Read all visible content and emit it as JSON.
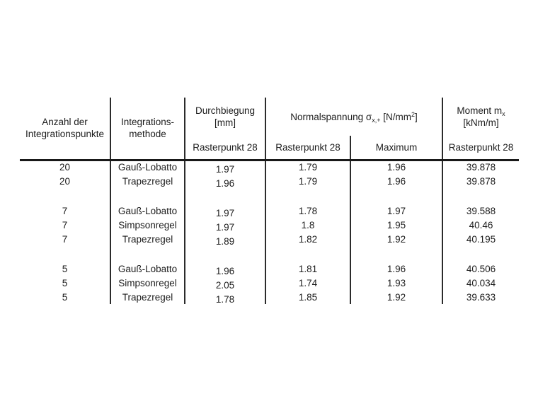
{
  "table": {
    "headers": {
      "anzahl_line1": "Anzahl der",
      "anzahl_line2": "Integrationspunkte",
      "methode_line1": "Integrations-",
      "methode_line2": "methode",
      "durchbiegung_line1": "Durchbiegung",
      "durchbiegung_line2": "[mm]",
      "normalspannung_text": "Normalspannung σ",
      "normalspannung_subscript": "x,+",
      "normalspannung_unit_open": " [N/mm",
      "normalspannung_exponent": "2",
      "normalspannung_unit_close": "]",
      "moment_text": "Moment m",
      "moment_subscript": "x",
      "moment_unit": "[kNm/m]"
    },
    "subheaders": {
      "durchbiegung_rasterpunkt": "Rasterpunkt 28",
      "sigma_rasterpunkt": "Rasterpunkt 28",
      "sigma_maximum": "Maximum",
      "moment_rasterpunkt": "Rasterpunkt 28"
    },
    "rows": [
      {
        "punkte": "20",
        "methode": "Gauß-Lobatto",
        "durchbiegung": "1.97",
        "sigma_rp28": "1.79",
        "sigma_max": "1.96",
        "moment_rp28": "39.878"
      },
      {
        "punkte": "20",
        "methode": "Trapezregel",
        "durchbiegung": "1.96",
        "sigma_rp28": "1.79",
        "sigma_max": "1.96",
        "moment_rp28": "39.878"
      },
      {
        "punkte": "7",
        "methode": "Gauß-Lobatto",
        "durchbiegung": "1.97",
        "sigma_rp28": "1.78",
        "sigma_max": "1.97",
        "moment_rp28": "39.588"
      },
      {
        "punkte": "7",
        "methode": "Simpsonregel",
        "durchbiegung": "1.97",
        "sigma_rp28": "1.8",
        "sigma_max": "1.95",
        "moment_rp28": "40.46"
      },
      {
        "punkte": "7",
        "methode": "Trapezregel",
        "durchbiegung": "1.89",
        "sigma_rp28": "1.82",
        "sigma_max": "1.92",
        "moment_rp28": "40.195"
      },
      {
        "punkte": "5",
        "methode": "Gauß-Lobatto",
        "durchbiegung": "1.96",
        "sigma_rp28": "1.81",
        "sigma_max": "1.96",
        "moment_rp28": "40.506"
      },
      {
        "punkte": "5",
        "methode": "Simpsonregel",
        "durchbiegung": "2.05",
        "sigma_rp28": "1.74",
        "sigma_max": "1.93",
        "moment_rp28": "40.034"
      },
      {
        "punkte": "5",
        "methode": "Trapezregel",
        "durchbiegung": "1.78",
        "sigma_rp28": "1.85",
        "sigma_max": "1.92",
        "moment_rp28": "39.633"
      }
    ]
  }
}
